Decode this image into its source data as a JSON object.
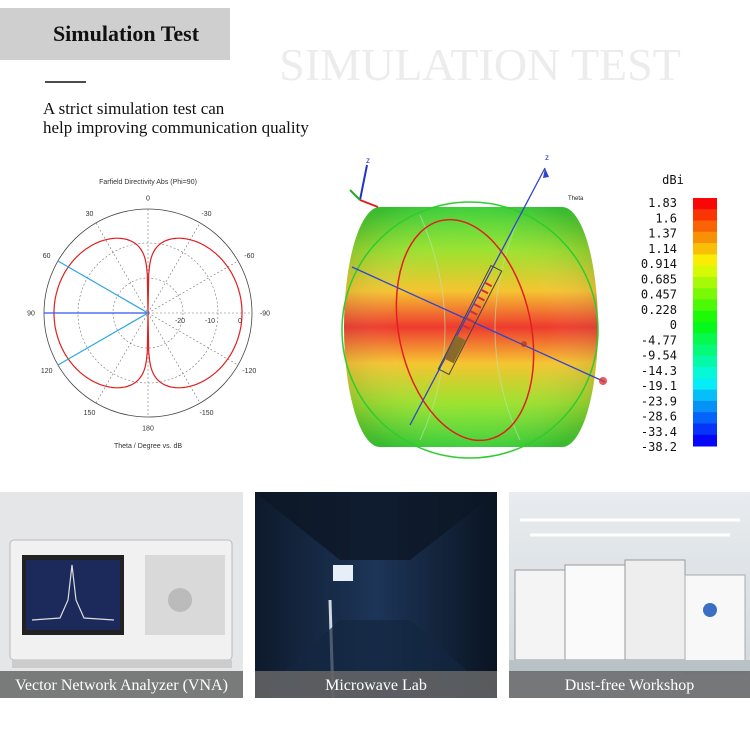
{
  "header": {
    "title": "Simulation Test",
    "watermark": "SIMULATION TEST"
  },
  "intro": {
    "lines": [
      "A strict simulation test can",
      "help improving communication quality"
    ]
  },
  "polar_plot": {
    "title": "Farfield Directivity Abs (Phi=90)",
    "angle_labels": [
      "0",
      "30",
      "60",
      "90",
      "120",
      "150",
      "180",
      "-150",
      "-120",
      "-90",
      "-60",
      "-30"
    ],
    "radial_labels": [
      "-20",
      "-10",
      "0"
    ],
    "axis_label": "Theta / Degree vs. dB"
  },
  "pattern_3d": {
    "axis_labels": [
      "z",
      "Theta"
    ]
  },
  "colorbar": {
    "unit": "dBi",
    "labels": [
      "1.83",
      "1.6",
      "1.37",
      "1.14",
      "0.914",
      "0.685",
      "0.457",
      "0.228",
      "0",
      "-4.77",
      "-9.54",
      "-14.3",
      "-19.1",
      "-23.9",
      "-28.6",
      "-33.4",
      "-38.2"
    ]
  },
  "photos": [
    {
      "caption": "Vector Network Analyzer (VNA)"
    },
    {
      "caption": "Microwave Lab"
    },
    {
      "caption": "Dust-free Workshop"
    }
  ]
}
